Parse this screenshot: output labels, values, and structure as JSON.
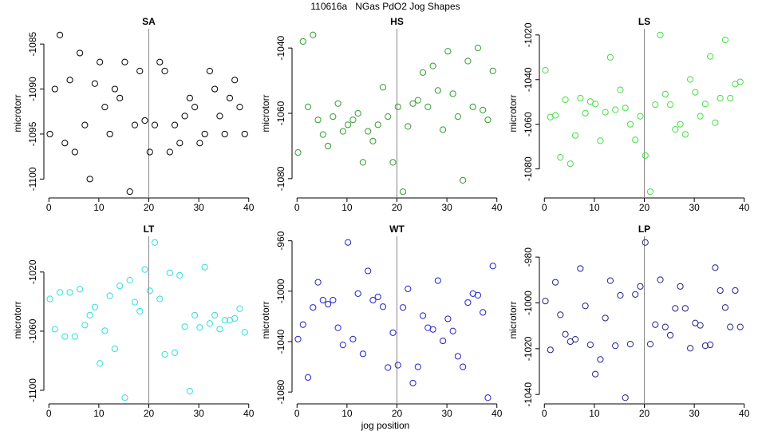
{
  "title": "110616a   NGas PdO2 Jog Shapes",
  "xlabel": "jog position",
  "chart_data": [
    {
      "type": "scatter",
      "title": "SA",
      "ylabel": "microtorr",
      "color": "#000000",
      "vline": 20,
      "xlim": [
        -1,
        41
      ],
      "xticks": [
        0,
        10,
        20,
        30,
        40
      ],
      "ylim": [
        -1102.1,
        -1083.3
      ],
      "yticks": [
        -1085,
        -1090,
        -1095,
        -1100
      ],
      "x": [
        0.2,
        1.2,
        2.2,
        3.2,
        4.2,
        5.2,
        6.2,
        7.2,
        8.2,
        9.2,
        10.2,
        11.2,
        12.2,
        13.2,
        14.2,
        15.2,
        16.2,
        17.2,
        18.2,
        19.2,
        20.2,
        21.2,
        22.2,
        23.2,
        24.2,
        25.2,
        26.2,
        27.2,
        28.2,
        29.2,
        30.2,
        31.2,
        32.2,
        33.2,
        34.2,
        35.2,
        36.2,
        37.2,
        38.2,
        39.2
      ],
      "values": [
        -1095,
        -1090,
        -1084,
        -1096,
        -1089,
        -1097,
        -1086,
        -1094,
        -1100,
        -1089.4,
        -1087,
        -1092,
        -1095,
        -1090,
        -1091,
        -1087,
        -1101.4,
        -1094,
        -1088,
        -1093.5,
        -1097,
        -1094,
        -1087,
        -1088,
        -1097,
        -1094,
        -1096,
        -1093,
        -1091,
        -1092,
        -1096,
        -1095,
        -1088,
        -1090,
        -1093,
        -1095,
        -1091,
        -1089,
        -1092,
        -1095
      ]
    },
    {
      "type": "scatter",
      "title": "HS",
      "ylabel": "microtorr",
      "color": "#2e9e2e",
      "vline": 20,
      "xlim": [
        -1,
        41
      ],
      "xticks": [
        0,
        10,
        20,
        30,
        40
      ],
      "ylim": [
        -1085.9,
        -1034.1
      ],
      "yticks": [
        -1040,
        -1060,
        -1080
      ],
      "x": [
        0.2,
        1.2,
        2.2,
        3.2,
        4.2,
        5.2,
        6.2,
        7.2,
        8.2,
        9.2,
        10.2,
        11.2,
        12.2,
        13.2,
        14.2,
        15.2,
        16.2,
        17.2,
        18.2,
        19.2,
        20.2,
        21.2,
        22.2,
        23.2,
        24.2,
        25.2,
        26.2,
        27.2,
        28.2,
        29.2,
        30.2,
        31.2,
        32.2,
        33.2,
        34.2,
        35.2,
        36.2,
        37.2,
        38.2,
        39.2
      ],
      "values": [
        -1072,
        -1038,
        -1058,
        -1036,
        -1062,
        -1066.5,
        -1070,
        -1061,
        -1057,
        -1065.5,
        -1063.5,
        -1062,
        -1060,
        -1075,
        -1065.5,
        -1068.5,
        -1063.5,
        -1052,
        -1061,
        -1075,
        -1058,
        -1084,
        -1064,
        -1057,
        -1056,
        -1047.5,
        -1058,
        -1045.5,
        -1053,
        -1065,
        -1041,
        -1054,
        -1061,
        -1080.5,
        -1044,
        -1058,
        -1040,
        -1059,
        -1062,
        -1047
      ]
    },
    {
      "type": "scatter",
      "title": "LS",
      "ylabel": "microtorr",
      "color": "#44dd44",
      "vline": 20,
      "xlim": [
        -1,
        41
      ],
      "xticks": [
        0,
        10,
        20,
        30,
        40
      ],
      "ylim": [
        -1093,
        -1017.2
      ],
      "yticks": [
        -1020,
        -1040,
        -1060,
        -1080
      ],
      "x": [
        0.2,
        1.2,
        2.2,
        3.2,
        4.2,
        5.2,
        6.2,
        7.2,
        8.2,
        9.2,
        10.2,
        11.2,
        12.2,
        13.2,
        14.2,
        15.2,
        16.2,
        17.2,
        18.2,
        19.2,
        20.2,
        21.2,
        22.2,
        23.2,
        24.2,
        25.2,
        26.2,
        27.2,
        28.2,
        29.2,
        30.2,
        31.2,
        32.2,
        33.2,
        34.2,
        35.2,
        36.2,
        37.2,
        38.2,
        39.2
      ],
      "values": [
        -1035.8,
        -1056.8,
        -1056,
        -1074.8,
        -1049,
        -1077.7,
        -1065,
        -1048.3,
        -1055,
        -1049.8,
        -1050.9,
        -1067.4,
        -1054.6,
        -1030,
        -1053.5,
        -1044.6,
        -1052.7,
        -1060,
        -1067,
        -1056.4,
        -1074,
        -1090.2,
        -1051.2,
        -1020,
        -1046.5,
        -1051.2,
        -1062.3,
        -1060,
        -1064.5,
        -1039.9,
        -1045.7,
        -1056.4,
        -1050.9,
        -1029.6,
        -1059.3,
        -1048.3,
        -1022.2,
        -1048.3,
        -1042,
        -1041
      ]
    },
    {
      "type": "scatter",
      "title": "LT",
      "ylabel": "microtorr",
      "color": "#33dddd",
      "vline": 20,
      "xlim": [
        -1,
        41
      ],
      "xticks": [
        0,
        10,
        20,
        30,
        40
      ],
      "ylim": [
        -1109.2,
        -995.8
      ],
      "yticks": [
        -1020,
        -1060,
        -1100
      ],
      "x": [
        0.2,
        1.2,
        2.2,
        3.2,
        4.2,
        5.2,
        6.2,
        7.2,
        8.2,
        9.2,
        10.2,
        11.2,
        12.2,
        13.2,
        14.2,
        15.2,
        16.2,
        17.2,
        18.2,
        19.2,
        20.2,
        21.2,
        22.2,
        23.2,
        24.2,
        25.2,
        26.2,
        27.2,
        28.2,
        29.2,
        30.2,
        31.2,
        32.2,
        33.2,
        34.2,
        35.2,
        36.2,
        37.2,
        38.2,
        39.2
      ],
      "values": [
        -1038.2,
        -1058.6,
        -1033.8,
        -1063.6,
        -1033.8,
        -1063.6,
        -1031.6,
        -1055.9,
        -1049.2,
        -1043.7,
        -1081.8,
        -1059.7,
        -1036,
        -1071.9,
        -1029.4,
        -1105,
        -1025.5,
        -1040.4,
        -1046.5,
        -1018.3,
        -1032.7,
        -1000,
        -1038.2,
        -1075.7,
        -1020.6,
        -1074.6,
        -1022.2,
        -1057,
        -1100.6,
        -1049.2,
        -1057.5,
        -1016.7,
        -1054.8,
        -1049.2,
        -1058.6,
        -1052.6,
        -1052.6,
        -1051.4,
        -1044.8,
        -1060.8
      ]
    },
    {
      "type": "scatter",
      "title": "WT",
      "ylabel": "microtorr",
      "color": "#2222cc",
      "vline": 20,
      "xlim": [
        -1,
        41
      ],
      "xticks": [
        0,
        10,
        20,
        30,
        40
      ],
      "ylim": [
        -1089.4,
        -956.4
      ],
      "yticks": [
        -960,
        -1000,
        -1040,
        -1080
      ],
      "x": [
        0.2,
        1.2,
        2.2,
        3.2,
        4.2,
        5.2,
        6.2,
        7.2,
        8.2,
        9.2,
        10.2,
        11.2,
        12.2,
        13.2,
        14.2,
        15.2,
        16.2,
        17.2,
        18.2,
        19.2,
        20.2,
        21.2,
        22.2,
        23.2,
        24.2,
        25.2,
        26.2,
        27.2,
        28.2,
        29.2,
        30.2,
        31.2,
        32.2,
        33.2,
        34.2,
        35.2,
        36.2,
        37.2,
        38.2,
        39.2
      ],
      "values": [
        -1038,
        -1026.5,
        -1068.4,
        -1012.9,
        -992.9,
        -1007.1,
        -1010.3,
        -1007.1,
        -1029,
        -1042.6,
        -961.3,
        -1038,
        -1001.9,
        -1049.7,
        -983.9,
        -1007.1,
        -1004.5,
        -1012.3,
        -1060.6,
        -1032.9,
        -1058.7,
        -1012.9,
        -998.1,
        -1072.9,
        -1060,
        -1019.4,
        -1029,
        -1030.3,
        -991.6,
        -1039.4,
        -1021.9,
        -1031.6,
        -1051.6,
        -1060,
        -1009,
        -1001.9,
        -1003.2,
        -1016.8,
        -1084.5,
        -980
      ]
    },
    {
      "type": "scatter",
      "title": "LP",
      "ylabel": "microtorr",
      "color": "#222288",
      "vline": 20,
      "xlim": [
        -1,
        41
      ],
      "xticks": [
        0,
        10,
        20,
        30,
        40
      ],
      "ylim": [
        -1044.1,
        -970.9
      ],
      "yticks": [
        -980,
        -1000,
        -1020,
        -1040
      ],
      "x": [
        0.2,
        1.2,
        2.2,
        3.2,
        4.2,
        5.2,
        6.2,
        7.2,
        8.2,
        9.2,
        10.2,
        11.2,
        12.2,
        13.2,
        14.2,
        15.2,
        16.2,
        17.2,
        18.2,
        19.2,
        20.2,
        21.2,
        22.2,
        23.2,
        24.2,
        25.2,
        26.2,
        27.2,
        28.2,
        29.2,
        30.2,
        31.2,
        32.2,
        33.2,
        34.2,
        35.2,
        36.2,
        37.2,
        38.2,
        39.2
      ],
      "values": [
        -999.2,
        -1020.5,
        -991,
        -1005.2,
        -1013.7,
        -1016.9,
        -1015.9,
        -985,
        -1001.3,
        -1018.3,
        -1031.1,
        -1024.7,
        -1006.6,
        -990.3,
        -1018.7,
        -996.7,
        -1041.4,
        -1018,
        -996.3,
        -992.8,
        -973.6,
        -1018,
        -1009.5,
        -989.9,
        -1010.5,
        -1014.1,
        -1002.4,
        -992.8,
        -1002.4,
        -1019.8,
        -1008.8,
        -1009.8,
        -1018.7,
        -1018.3,
        -984.6,
        -994.6,
        -1002,
        -1010.5,
        -994.6,
        -1010.5
      ]
    }
  ]
}
